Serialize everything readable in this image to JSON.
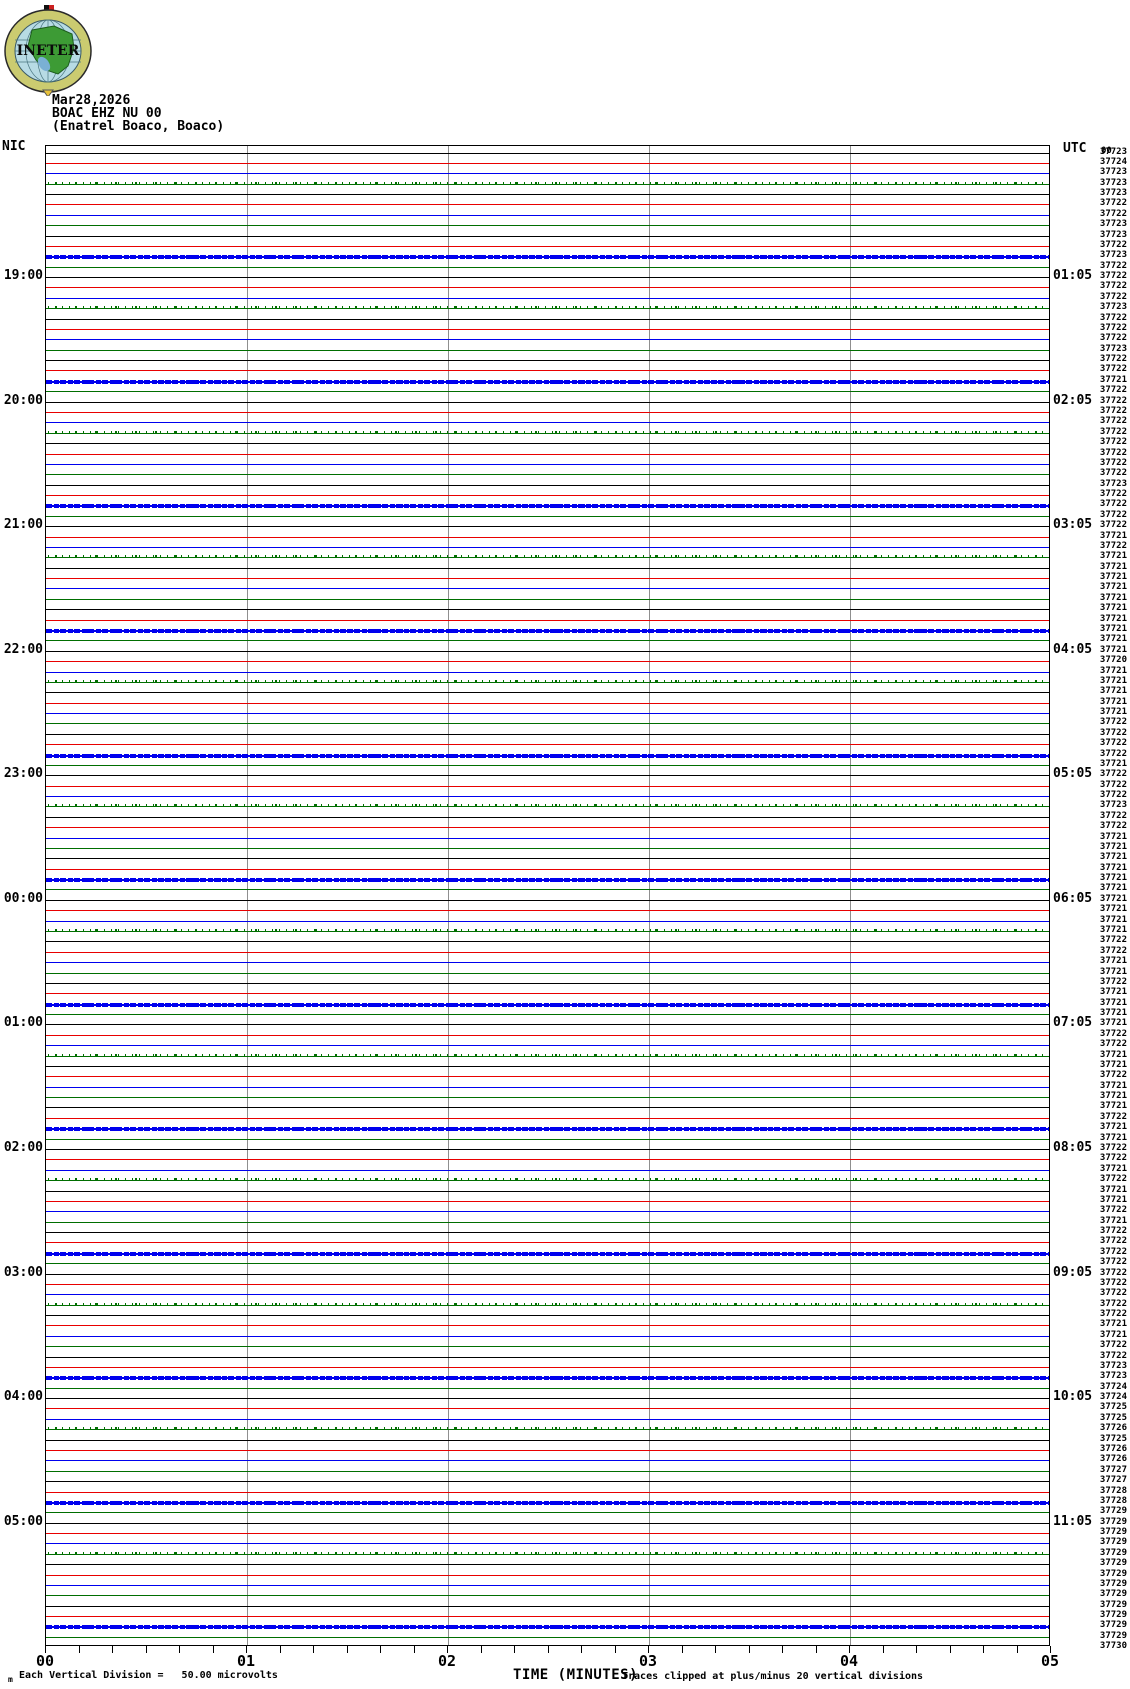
{
  "header": {
    "logo_text": "INETER",
    "date": "Mar28,2026",
    "station": "BOAC EHZ NU 00",
    "location": "(Enatrel Boaco, Boaco)"
  },
  "chart_data": {
    "type": "line",
    "subtype": "helicorder-drum-plot",
    "xlabel": "TIME (MINUTES)",
    "x_ticks": [
      "00",
      "01",
      "02",
      "03",
      "04",
      "05"
    ],
    "x_range_minutes": [
      0,
      5
    ],
    "minor_ticks_per_minute": 6,
    "minutes_per_row": 5,
    "rows_total": 145,
    "row_start_local": "18:00",
    "left_axis_heading": "NIC",
    "right_axis_heading": "UTC",
    "trace_color_cycle": [
      "#000000",
      "#e80000",
      "#0000ee",
      "#006e00"
    ],
    "gridline_color": "#8f8f8f",
    "top_overlap_label": "00",
    "baseline_description": "near-flat noise traces at zero amplitude",
    "noise_pattern": {
      "green_dotted_rows_local_minute": 15,
      "blue_heavy_rows_local_minute": 50
    },
    "left_hour_labels": [
      {
        "row": 12,
        "text": "19:00"
      },
      {
        "row": 24,
        "text": "20:00"
      },
      {
        "row": 36,
        "text": "21:00"
      },
      {
        "row": 48,
        "text": "22:00"
      },
      {
        "row": 60,
        "text": "23:00"
      },
      {
        "row": 72,
        "text": "00:00"
      },
      {
        "row": 84,
        "text": "01:00"
      },
      {
        "row": 96,
        "text": "02:00"
      },
      {
        "row": 108,
        "text": "03:00"
      },
      {
        "row": 120,
        "text": "04:00"
      },
      {
        "row": 132,
        "text": "05:00"
      }
    ],
    "right_hour_labels": [
      {
        "row": 12,
        "text": "01:05"
      },
      {
        "row": 24,
        "text": "02:05"
      },
      {
        "row": 36,
        "text": "03:05"
      },
      {
        "row": 48,
        "text": "04:05"
      },
      {
        "row": 60,
        "text": "05:05"
      },
      {
        "row": 72,
        "text": "06:05"
      },
      {
        "row": 84,
        "text": "07:05"
      },
      {
        "row": 96,
        "text": "08:05"
      },
      {
        "row": 108,
        "text": "09:05"
      },
      {
        "row": 120,
        "text": "10:05"
      },
      {
        "row": 132,
        "text": "11:05"
      }
    ],
    "right_sample_counts": [
      37723,
      37724,
      37723,
      37723,
      37723,
      37722,
      37722,
      37723,
      37723,
      37722,
      37723,
      37722,
      37722,
      37722,
      37722,
      37723,
      37722,
      37722,
      37722,
      37723,
      37722,
      37722,
      37721,
      37722,
      37722,
      37722,
      37722,
      37722,
      37722,
      37722,
      37722,
      37722,
      37723,
      37722,
      37722,
      37722,
      37722,
      37721,
      37722,
      37721,
      37721,
      37721,
      37721,
      37721,
      37721,
      37721,
      37721,
      37721,
      37721,
      37720,
      37721,
      37721,
      37721,
      37721,
      37721,
      37722,
      37722,
      37722,
      37722,
      37721,
      37722,
      37722,
      37722,
      37723,
      37722,
      37722,
      37721,
      37721,
      37721,
      37721,
      37721,
      37721,
      37721,
      37721,
      37721,
      37721,
      37722,
      37722,
      37721,
      37721,
      37722,
      37721,
      37721,
      37721,
      37721,
      37722,
      37722,
      37721,
      37721,
      37722,
      37721,
      37721,
      37721,
      37722,
      37721,
      37721,
      37722,
      37722,
      37721,
      37722,
      37721,
      37721,
      37722,
      37721,
      37722,
      37722,
      37722,
      37722,
      37722,
      37722,
      37722,
      37722,
      37722,
      37721,
      37721,
      37722,
      37722,
      37723,
      37723,
      37724,
      37724,
      37725,
      37725,
      37726,
      37725,
      37726,
      37726,
      37727,
      37727,
      37728,
      37728,
      37729,
      37729,
      37729,
      37729,
      37729,
      37729,
      37729,
      37729,
      37729,
      37729,
      37729,
      37729,
      37729,
      37730
    ]
  },
  "footer": {
    "left_mark": "m",
    "scale_note": "Each Vertical Division =   50.00 microvolts",
    "x_title": "TIME (MINUTES)",
    "clip_note": "Traces clipped at plus/minus 20 vertical divisions"
  }
}
